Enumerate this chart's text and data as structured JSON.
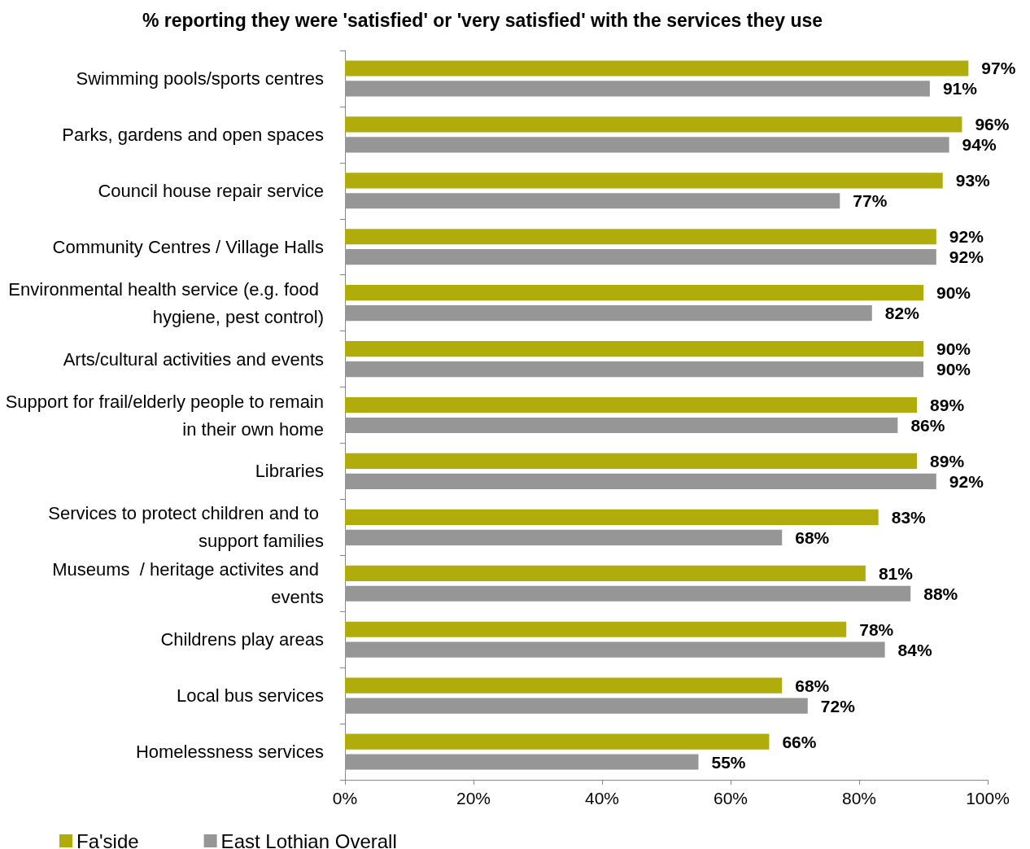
{
  "chart_data": {
    "type": "bar",
    "orientation": "horizontal",
    "title": "% reporting they were 'satisfied' or 'very satisfied' with the services they use",
    "categories": [
      "Swimming pools/sports centres",
      "Parks, gardens and open spaces",
      "Council house repair service",
      "Community Centres / Village Halls",
      "Environmental health service (e.g. food hygiene, pest control)",
      "Arts/cultural activities and events",
      "Support for frail/elderly people to remain in their own home",
      "Libraries",
      "Services to protect children and to support families",
      "Museums  / heritage activites and events",
      "Childrens play areas",
      "Local bus services",
      "Homelessness services"
    ],
    "series": [
      {
        "name": "Fa'side",
        "color": "#b0ac0c",
        "values": [
          97,
          96,
          93,
          92,
          90,
          90,
          89,
          89,
          83,
          81,
          78,
          68,
          66
        ],
        "value_labels": [
          "97%",
          "96%",
          "93%",
          "92%",
          "90%",
          "90%",
          "89%",
          "89%",
          "83%",
          "81%",
          "78%",
          "68%",
          "66%"
        ]
      },
      {
        "name": "East Lothian Overall",
        "color": "#969696",
        "values": [
          91,
          94,
          77,
          92,
          82,
          90,
          86,
          92,
          68,
          88,
          84,
          72,
          55
        ],
        "value_labels": [
          "91%",
          "94%",
          "77%",
          "92%",
          "82%",
          "90%",
          "86%",
          "92%",
          "68%",
          "88%",
          "84%",
          "72%",
          "55%"
        ]
      }
    ],
    "xlim": [
      0,
      100
    ],
    "xticks": [
      {
        "value": 0,
        "label": "0%"
      },
      {
        "value": 20,
        "label": "20%"
      },
      {
        "value": 40,
        "label": "40%"
      },
      {
        "value": 60,
        "label": "60%"
      },
      {
        "value": 80,
        "label": "80%"
      },
      {
        "value": 100,
        "label": "100%"
      }
    ],
    "legend": "bottom left"
  }
}
